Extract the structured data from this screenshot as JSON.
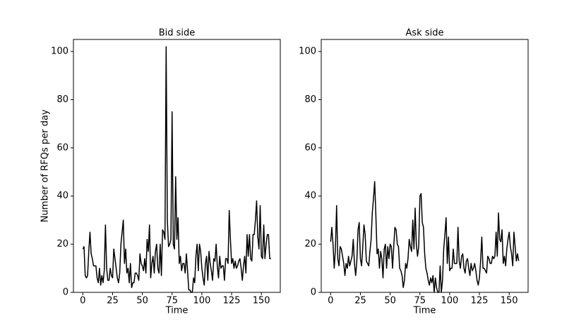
{
  "chart_data": [
    {
      "type": "line",
      "title": "Bid side",
      "xlabel": "Time",
      "ylabel": "Number of RFQs per day",
      "x": [
        0,
        1,
        2,
        3,
        4,
        5,
        6,
        7,
        8,
        9,
        10,
        11,
        12,
        13,
        14,
        15,
        16,
        17,
        18,
        19,
        20,
        21,
        22,
        23,
        24,
        25,
        26,
        27,
        28,
        29,
        30,
        31,
        32,
        33,
        34,
        35,
        36,
        37,
        38,
        39,
        40,
        41,
        42,
        43,
        44,
        45,
        46,
        47,
        48,
        49,
        50,
        51,
        52,
        53,
        54,
        55,
        56,
        57,
        58,
        59,
        60,
        61,
        62,
        63,
        64,
        65,
        66,
        67,
        68,
        69,
        70,
        71,
        72,
        73,
        74,
        75,
        76,
        77,
        78,
        79,
        80,
        81,
        82,
        83,
        84,
        85,
        86,
        87,
        88,
        89,
        90,
        91,
        92,
        93,
        94,
        95,
        96,
        97,
        98,
        99,
        100,
        101,
        102,
        103,
        104,
        105,
        106,
        107,
        108,
        109,
        110,
        111,
        112,
        113,
        114,
        115,
        116,
        117,
        118,
        119,
        120,
        121,
        122,
        123,
        124,
        125,
        126,
        127,
        128,
        129,
        130,
        131,
        132,
        133,
        134,
        135,
        136,
        137,
        138,
        139,
        140,
        141,
        142,
        143,
        144,
        145,
        146,
        147,
        148,
        149,
        150,
        151,
        152,
        153,
        154,
        155,
        156,
        157,
        158
      ],
      "series": [
        {
          "color": "#000000",
          "values": [
            18,
            19,
            7,
            6,
            7,
            17,
            25,
            16,
            14,
            11,
            11,
            11,
            6,
            4,
            10,
            3,
            7,
            4,
            9,
            28,
            10,
            5,
            5,
            10,
            7,
            6,
            18,
            14,
            10,
            6,
            4,
            8,
            20,
            25,
            30,
            12,
            18,
            8,
            10,
            4,
            12,
            2,
            4,
            4,
            8,
            8,
            7,
            5,
            16,
            12,
            11,
            9,
            14,
            8,
            22,
            17,
            28,
            6,
            12,
            15,
            8,
            17,
            20,
            10,
            8,
            20,
            7,
            26,
            25,
            22,
            102,
            30,
            19,
            20,
            22,
            75,
            20,
            18,
            48,
            22,
            31,
            12,
            15,
            9,
            12,
            12,
            8,
            16,
            9,
            1,
            1,
            0,
            0,
            6,
            4,
            15,
            20,
            9,
            20,
            17,
            10,
            6,
            3,
            12,
            15,
            5,
            17,
            12,
            9,
            5,
            14,
            13,
            20,
            11,
            6,
            15,
            10,
            11,
            11,
            5,
            14,
            14,
            12,
            34,
            22,
            12,
            14,
            10,
            13,
            10,
            11,
            13,
            14,
            10,
            5,
            11,
            15,
            8,
            24,
            15,
            24,
            14,
            13,
            24,
            24,
            30,
            38,
            23,
            18,
            36,
            15,
            14,
            28,
            14,
            20,
            24,
            24,
            14,
            14
          ]
        }
      ],
      "xlim": [
        -7.9,
        165.9
      ],
      "ylim": [
        0,
        105
      ],
      "xticks": [
        0,
        25,
        50,
        75,
        100,
        125,
        150
      ],
      "yticks": [
        0,
        20,
        40,
        60,
        80,
        100
      ]
    },
    {
      "type": "line",
      "title": "Ask side",
      "xlabel": "Time",
      "x": [
        0,
        1,
        2,
        3,
        4,
        5,
        6,
        7,
        8,
        9,
        10,
        11,
        12,
        13,
        14,
        15,
        16,
        17,
        18,
        19,
        20,
        21,
        22,
        23,
        24,
        25,
        26,
        27,
        28,
        29,
        30,
        31,
        32,
        33,
        34,
        35,
        36,
        37,
        38,
        39,
        40,
        41,
        42,
        43,
        44,
        45,
        46,
        47,
        48,
        49,
        50,
        51,
        52,
        53,
        54,
        55,
        56,
        57,
        58,
        59,
        60,
        61,
        62,
        63,
        64,
        65,
        66,
        67,
        68,
        69,
        70,
        71,
        72,
        73,
        74,
        75,
        76,
        77,
        78,
        79,
        80,
        81,
        82,
        83,
        84,
        85,
        86,
        87,
        88,
        89,
        90,
        91,
        92,
        93,
        94,
        95,
        96,
        97,
        98,
        99,
        100,
        101,
        102,
        103,
        104,
        105,
        106,
        107,
        108,
        109,
        110,
        111,
        112,
        113,
        114,
        115,
        116,
        117,
        118,
        119,
        120,
        121,
        122,
        123,
        124,
        125,
        126,
        127,
        128,
        129,
        130,
        131,
        132,
        133,
        134,
        135,
        136,
        137,
        138,
        139,
        140,
        141,
        142,
        143,
        144,
        145,
        146,
        147,
        148,
        149,
        150,
        151,
        152,
        153,
        154,
        155,
        156,
        157,
        158
      ],
      "series": [
        {
          "color": "#000000",
          "values": [
            21,
            27,
            20,
            10,
            18,
            36,
            14,
            11,
            19,
            18,
            15,
            12,
            7,
            12,
            10,
            15,
            11,
            13,
            15,
            22,
            12,
            7,
            13,
            26,
            29,
            14,
            11,
            19,
            28,
            24,
            13,
            12,
            11,
            17,
            22,
            33,
            39,
            46,
            32,
            16,
            18,
            10,
            17,
            14,
            6,
            18,
            20,
            10,
            19,
            14,
            20,
            19,
            10,
            19,
            27,
            26,
            20,
            19,
            10,
            9,
            7,
            2,
            5,
            12,
            10,
            14,
            22,
            19,
            17,
            30,
            18,
            35,
            20,
            15,
            19,
            40,
            41,
            29,
            27,
            16,
            10,
            8,
            5,
            3,
            6,
            4,
            7,
            0,
            6,
            2,
            0,
            0,
            11,
            0,
            5,
            18,
            24,
            31,
            12,
            23,
            9,
            10,
            10,
            18,
            12,
            12,
            12,
            27,
            13,
            10,
            15,
            16,
            10,
            8,
            13,
            14,
            10,
            7,
            12,
            9,
            10,
            12,
            9,
            5,
            3,
            6,
            13,
            23,
            10,
            10,
            9,
            8,
            15,
            14,
            12,
            12,
            15,
            14,
            15,
            25,
            15,
            33,
            22,
            21,
            26,
            12,
            15,
            11,
            18,
            22,
            25,
            19,
            16,
            11,
            25,
            19,
            13,
            16,
            13
          ]
        }
      ],
      "xlim": [
        -7.9,
        165.9
      ],
      "ylim": [
        0,
        105
      ],
      "xticks": [
        0,
        25,
        50,
        75,
        100,
        125,
        150
      ],
      "yticks": [
        0,
        20,
        40,
        60,
        80,
        100
      ]
    }
  ]
}
